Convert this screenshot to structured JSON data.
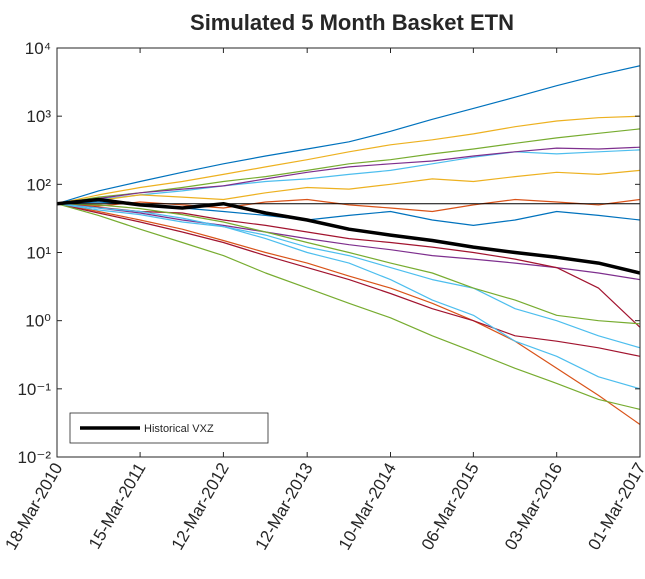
{
  "chart_data": {
    "type": "line",
    "title": "Simulated 5 Month Basket ETN",
    "log_y": true,
    "legend_position": "southwest",
    "x": [
      "2010-03-18",
      "2010-09-15",
      "2011-03-15",
      "2011-09-15",
      "2012-03-12",
      "2012-09-12",
      "2013-03-12",
      "2013-09-10",
      "2014-03-10",
      "2014-09-08",
      "2015-03-06",
      "2015-09-04",
      "2016-03-03",
      "2016-09-01",
      "2017-03-01"
    ],
    "xlim": [
      "2010-03-18",
      "2017-03-01"
    ],
    "xticks": [
      {
        "value": "2010-03-18",
        "label": "18-Mar-2010"
      },
      {
        "value": "2011-03-15",
        "label": "15-Mar-2011"
      },
      {
        "value": "2012-03-12",
        "label": "12-Mar-2012"
      },
      {
        "value": "2013-03-12",
        "label": "12-Mar-2013"
      },
      {
        "value": "2014-03-10",
        "label": "10-Mar-2014"
      },
      {
        "value": "2015-03-06",
        "label": "06-Mar-2015"
      },
      {
        "value": "2016-03-03",
        "label": "03-Mar-2016"
      },
      {
        "value": "2017-03-01",
        "label": "01-Mar-2017"
      }
    ],
    "ylim": [
      0.01,
      10000
    ],
    "yticks": [
      {
        "value": 0.01,
        "label": "10⁻²"
      },
      {
        "value": 0.1,
        "label": "10⁻¹"
      },
      {
        "value": 1,
        "label": "10⁰"
      },
      {
        "value": 10,
        "label": "10¹"
      },
      {
        "value": 100,
        "label": "10²"
      },
      {
        "value": 1000,
        "label": "10³"
      },
      {
        "value": 10000,
        "label": "10⁴"
      }
    ],
    "series": [
      {
        "color": "#0072bd",
        "values": [
          52,
          80,
          110,
          150,
          200,
          260,
          330,
          420,
          600,
          900,
          1300,
          1900,
          2800,
          4000,
          5500
        ]
      },
      {
        "color": "#edb120",
        "values": [
          52,
          70,
          90,
          110,
          140,
          180,
          230,
          300,
          380,
          450,
          550,
          700,
          850,
          950,
          1000
        ]
      },
      {
        "color": "#77ac30",
        "values": [
          52,
          65,
          75,
          90,
          110,
          130,
          160,
          200,
          230,
          280,
          330,
          400,
          480,
          560,
          650
        ]
      },
      {
        "color": "#d95319",
        "values": [
          52,
          40,
          30,
          22,
          15,
          10,
          7,
          4.5,
          3,
          1.8,
          1,
          0.5,
          0.2,
          0.08,
          0.03
        ]
      },
      {
        "color": "#7e2f8e",
        "values": [
          52,
          45,
          38,
          30,
          25,
          20,
          16,
          13,
          11,
          9,
          8,
          7,
          6,
          5,
          4
        ]
      },
      {
        "color": "#4dbeee",
        "values": [
          52,
          60,
          70,
          80,
          95,
          110,
          120,
          140,
          160,
          200,
          250,
          300,
          280,
          300,
          320
        ]
      },
      {
        "color": "#a2142f",
        "values": [
          52,
          38,
          28,
          20,
          14,
          9,
          6,
          4,
          2.5,
          1.5,
          1,
          0.6,
          0.5,
          0.4,
          0.3
        ]
      },
      {
        "color": "#0072bd",
        "values": [
          52,
          55,
          50,
          45,
          40,
          35,
          30,
          35,
          40,
          30,
          25,
          30,
          40,
          35,
          30
        ]
      },
      {
        "color": "#77ac30",
        "values": [
          52,
          35,
          22,
          14,
          9,
          5,
          3,
          1.8,
          1.1,
          0.6,
          0.35,
          0.2,
          0.12,
          0.07,
          0.05
        ]
      },
      {
        "color": "#edb120",
        "values": [
          52,
          58,
          70,
          65,
          60,
          75,
          90,
          85,
          100,
          120,
          110,
          130,
          150,
          140,
          160
        ]
      },
      {
        "color": "#d95319",
        "values": [
          52,
          48,
          55,
          50,
          45,
          55,
          60,
          50,
          45,
          40,
          50,
          60,
          55,
          50,
          60
        ]
      },
      {
        "color": "#4dbeee",
        "values": [
          52,
          42,
          36,
          28,
          24,
          18,
          12,
          9,
          6,
          4,
          3,
          1.5,
          1,
          0.6,
          0.4
        ]
      },
      {
        "color": "#7e2f8e",
        "values": [
          52,
          62,
          75,
          85,
          95,
          120,
          150,
          180,
          200,
          220,
          260,
          300,
          340,
          330,
          350
        ]
      },
      {
        "color": "#a2142f",
        "values": [
          52,
          46,
          40,
          38,
          30,
          25,
          20,
          16,
          14,
          12,
          10,
          8,
          6,
          3,
          0.8
        ]
      },
      {
        "color": "#77ac30",
        "values": [
          52,
          50,
          44,
          36,
          28,
          20,
          14,
          10,
          7,
          5,
          3,
          2,
          1.2,
          1,
          0.9
        ]
      },
      {
        "color": "#4dbeee",
        "values": [
          52,
          45,
          40,
          32,
          24,
          16,
          10,
          7,
          4,
          2,
          1.2,
          0.5,
          0.3,
          0.15,
          0.1
        ]
      },
      {
        "color": "#000000",
        "width": 1,
        "values": [
          52,
          52,
          52,
          52,
          52,
          52,
          52,
          52,
          52,
          52,
          52,
          52,
          52,
          52,
          52
        ]
      },
      {
        "name": "Historical VXZ",
        "color": "#000000",
        "width": 3.5,
        "values": [
          52,
          60,
          50,
          45,
          52,
          38,
          30,
          22,
          18,
          15,
          12,
          10,
          8.5,
          7,
          5
        ]
      }
    ]
  }
}
